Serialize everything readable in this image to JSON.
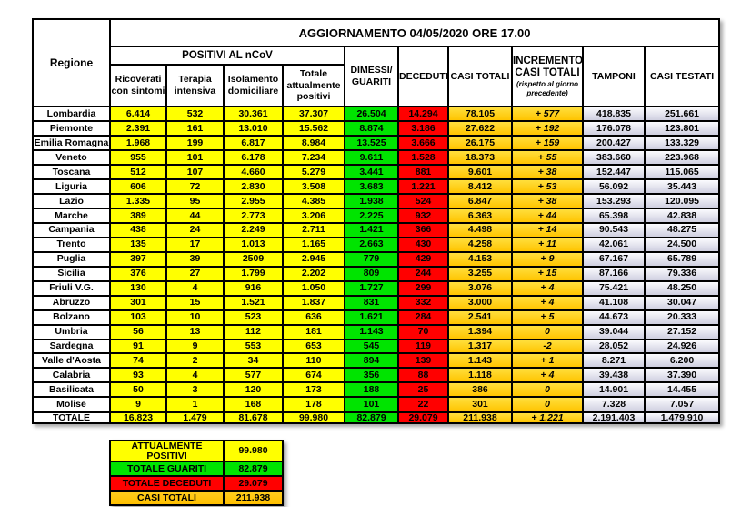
{
  "header": {
    "regione": "Regione",
    "group_positivi": "POSITIVI AL nCoV",
    "ricoverati": "Ricoverati\ncon sintomi",
    "terapia": "Terapia\nintensiva",
    "isolamento": "Isolamento\ndomiciliare",
    "totale_positivi": "Totale\nattualmente\npositivi",
    "dimessi": "DIMESSI/\nGUARITI",
    "deceduti": "DECEDUTI",
    "casi_totali": "CASI TOTALI",
    "incremento": "INCREMENTO\nCASI TOTALI",
    "incremento_note": "(rispetto al giorno\nprecedente)",
    "tamponi": "TAMPONI",
    "casi_testati": "CASI TESTATI"
  },
  "colors": {
    "yellow": "#ffff00",
    "green": "#00e400",
    "red": "#ff0000",
    "gold": "#ffc400",
    "gold_dark": "#ffc000",
    "lav_top": "#fbfbfe",
    "lav_bottom": "#cfcfe0",
    "border": "#000000"
  },
  "chart_data": {
    "type": "table",
    "title": "AGGIORNAMENTO 04/05/2020 ORE 17.00",
    "group_header": "POSITIVI AL nCoV (columns 2-5)",
    "columns": [
      "Regione",
      "Ricoverati con sintomi",
      "Terapia intensiva",
      "Isolamento domiciliare",
      "Totale attualmente positivi",
      "DIMESSI/GUARITI",
      "DECEDUTI",
      "CASI TOTALI",
      "INCREMENTO CASI TOTALI (rispetto al giorno precedente)",
      "TAMPONI",
      "CASI TESTATI"
    ],
    "rows": [
      [
        "Lombardia",
        "6.414",
        "532",
        "30.361",
        "37.307",
        "26.504",
        "14.294",
        "78.105",
        "+ 577",
        "418.835",
        "251.661"
      ],
      [
        "Piemonte",
        "2.391",
        "161",
        "13.010",
        "15.562",
        "8.874",
        "3.186",
        "27.622",
        "+ 192",
        "176.078",
        "123.801"
      ],
      [
        "Emilia Romagna",
        "1.968",
        "199",
        "6.817",
        "8.984",
        "13.525",
        "3.666",
        "26.175",
        "+ 159",
        "200.427",
        "133.329"
      ],
      [
        "Veneto",
        "955",
        "101",
        "6.178",
        "7.234",
        "9.611",
        "1.528",
        "18.373",
        "+ 55",
        "383.660",
        "223.968"
      ],
      [
        "Toscana",
        "512",
        "107",
        "4.660",
        "5.279",
        "3.441",
        "881",
        "9.601",
        "+ 38",
        "152.447",
        "115.065"
      ],
      [
        "Liguria",
        "606",
        "72",
        "2.830",
        "3.508",
        "3.683",
        "1.221",
        "8.412",
        "+ 53",
        "56.092",
        "35.443"
      ],
      [
        "Lazio",
        "1.335",
        "95",
        "2.955",
        "4.385",
        "1.938",
        "524",
        "6.847",
        "+ 38",
        "153.293",
        "120.095"
      ],
      [
        "Marche",
        "389",
        "44",
        "2.773",
        "3.206",
        "2.225",
        "932",
        "6.363",
        "+ 44",
        "65.398",
        "42.838"
      ],
      [
        "Campania",
        "438",
        "24",
        "2.249",
        "2.711",
        "1.421",
        "366",
        "4.498",
        "+ 14",
        "90.543",
        "48.275"
      ],
      [
        "Trento",
        "135",
        "17",
        "1.013",
        "1.165",
        "2.663",
        "430",
        "4.258",
        "+ 11",
        "42.061",
        "24.500"
      ],
      [
        "Puglia",
        "397",
        "39",
        "2509",
        "2.945",
        "779",
        "429",
        "4.153",
        "+ 9",
        "67.167",
        "65.789"
      ],
      [
        "Sicilia",
        "376",
        "27",
        "1.799",
        "2.202",
        "809",
        "244",
        "3.255",
        "+ 15",
        "87.166",
        "79.336"
      ],
      [
        "Friuli V.G.",
        "130",
        "4",
        "916",
        "1.050",
        "1.727",
        "299",
        "3.076",
        "+ 4",
        "75.421",
        "48.250"
      ],
      [
        "Abruzzo",
        "301",
        "15",
        "1.521",
        "1.837",
        "831",
        "332",
        "3.000",
        "+ 4",
        "41.108",
        "30.047"
      ],
      [
        "Bolzano",
        "103",
        "10",
        "523",
        "636",
        "1.621",
        "284",
        "2.541",
        "+ 5",
        "44.673",
        "20.333"
      ],
      [
        "Umbria",
        "56",
        "13",
        "112",
        "181",
        "1.143",
        "70",
        "1.394",
        "0",
        "39.044",
        "27.152"
      ],
      [
        "Sardegna",
        "91",
        "9",
        "553",
        "653",
        "545",
        "119",
        "1.317",
        "-2",
        "28.052",
        "24.926"
      ],
      [
        "Valle d'Aosta",
        "74",
        "2",
        "34",
        "110",
        "894",
        "139",
        "1.143",
        "+ 1",
        "8.271",
        "6.200"
      ],
      [
        "Calabria",
        "93",
        "4",
        "577",
        "674",
        "356",
        "88",
        "1.118",
        "+ 4",
        "39.438",
        "37.390"
      ],
      [
        "Basilicata",
        "50",
        "3",
        "120",
        "173",
        "188",
        "25",
        "386",
        "0",
        "14.901",
        "14.455"
      ],
      [
        "Molise",
        "9",
        "1",
        "168",
        "178",
        "101",
        "22",
        "301",
        "0",
        "7.328",
        "7.057"
      ]
    ],
    "totale_row": [
      "TOTALE",
      "16.823",
      "1.479",
      "81.678",
      "99.980",
      "82.879",
      "29.079",
      "211.938",
      "+ 1.221",
      "2.191.403",
      "1.479.910"
    ],
    "summary": [
      {
        "label": "ATTUALMENTE POSITIVI",
        "value": "99.980",
        "color": "yellow"
      },
      {
        "label": "TOTALE GUARITI",
        "value": "82.879",
        "color": "green"
      },
      {
        "label": "TOTALE DECEDUTI",
        "value": "29.079",
        "color": "red"
      },
      {
        "label": "CASI TOTALI",
        "value": "211.938",
        "color": "gold"
      }
    ]
  }
}
